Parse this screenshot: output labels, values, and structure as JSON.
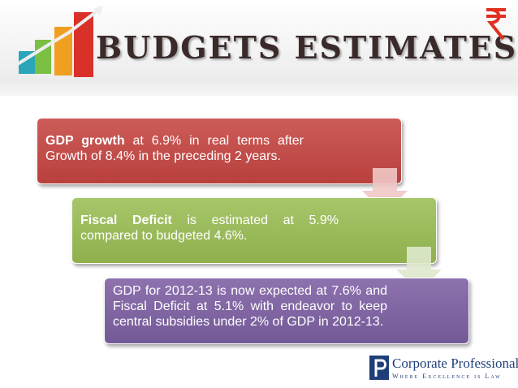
{
  "header": {
    "title": "BUDGETS ESTIMATES"
  },
  "boxes": [
    {
      "bold": "GDP growth",
      "text": " at 6.9% in real terms after Growth of 8.4% in the preceding 2 years."
    },
    {
      "bold": "Fiscal Deficit",
      "text": " is estimated at 5.9% compared to budgeted 4.6%."
    },
    {
      "bold": "",
      "text": "GDP for 2012-13 is now expected at 7.6% and Fiscal Deficit at 5.1% with endeavor to keep central subsidies under 2% of GDP in 2012-13."
    }
  ],
  "logo": {
    "name": "Corporate Professionals",
    "tagline": "Where Excellence is Law"
  }
}
